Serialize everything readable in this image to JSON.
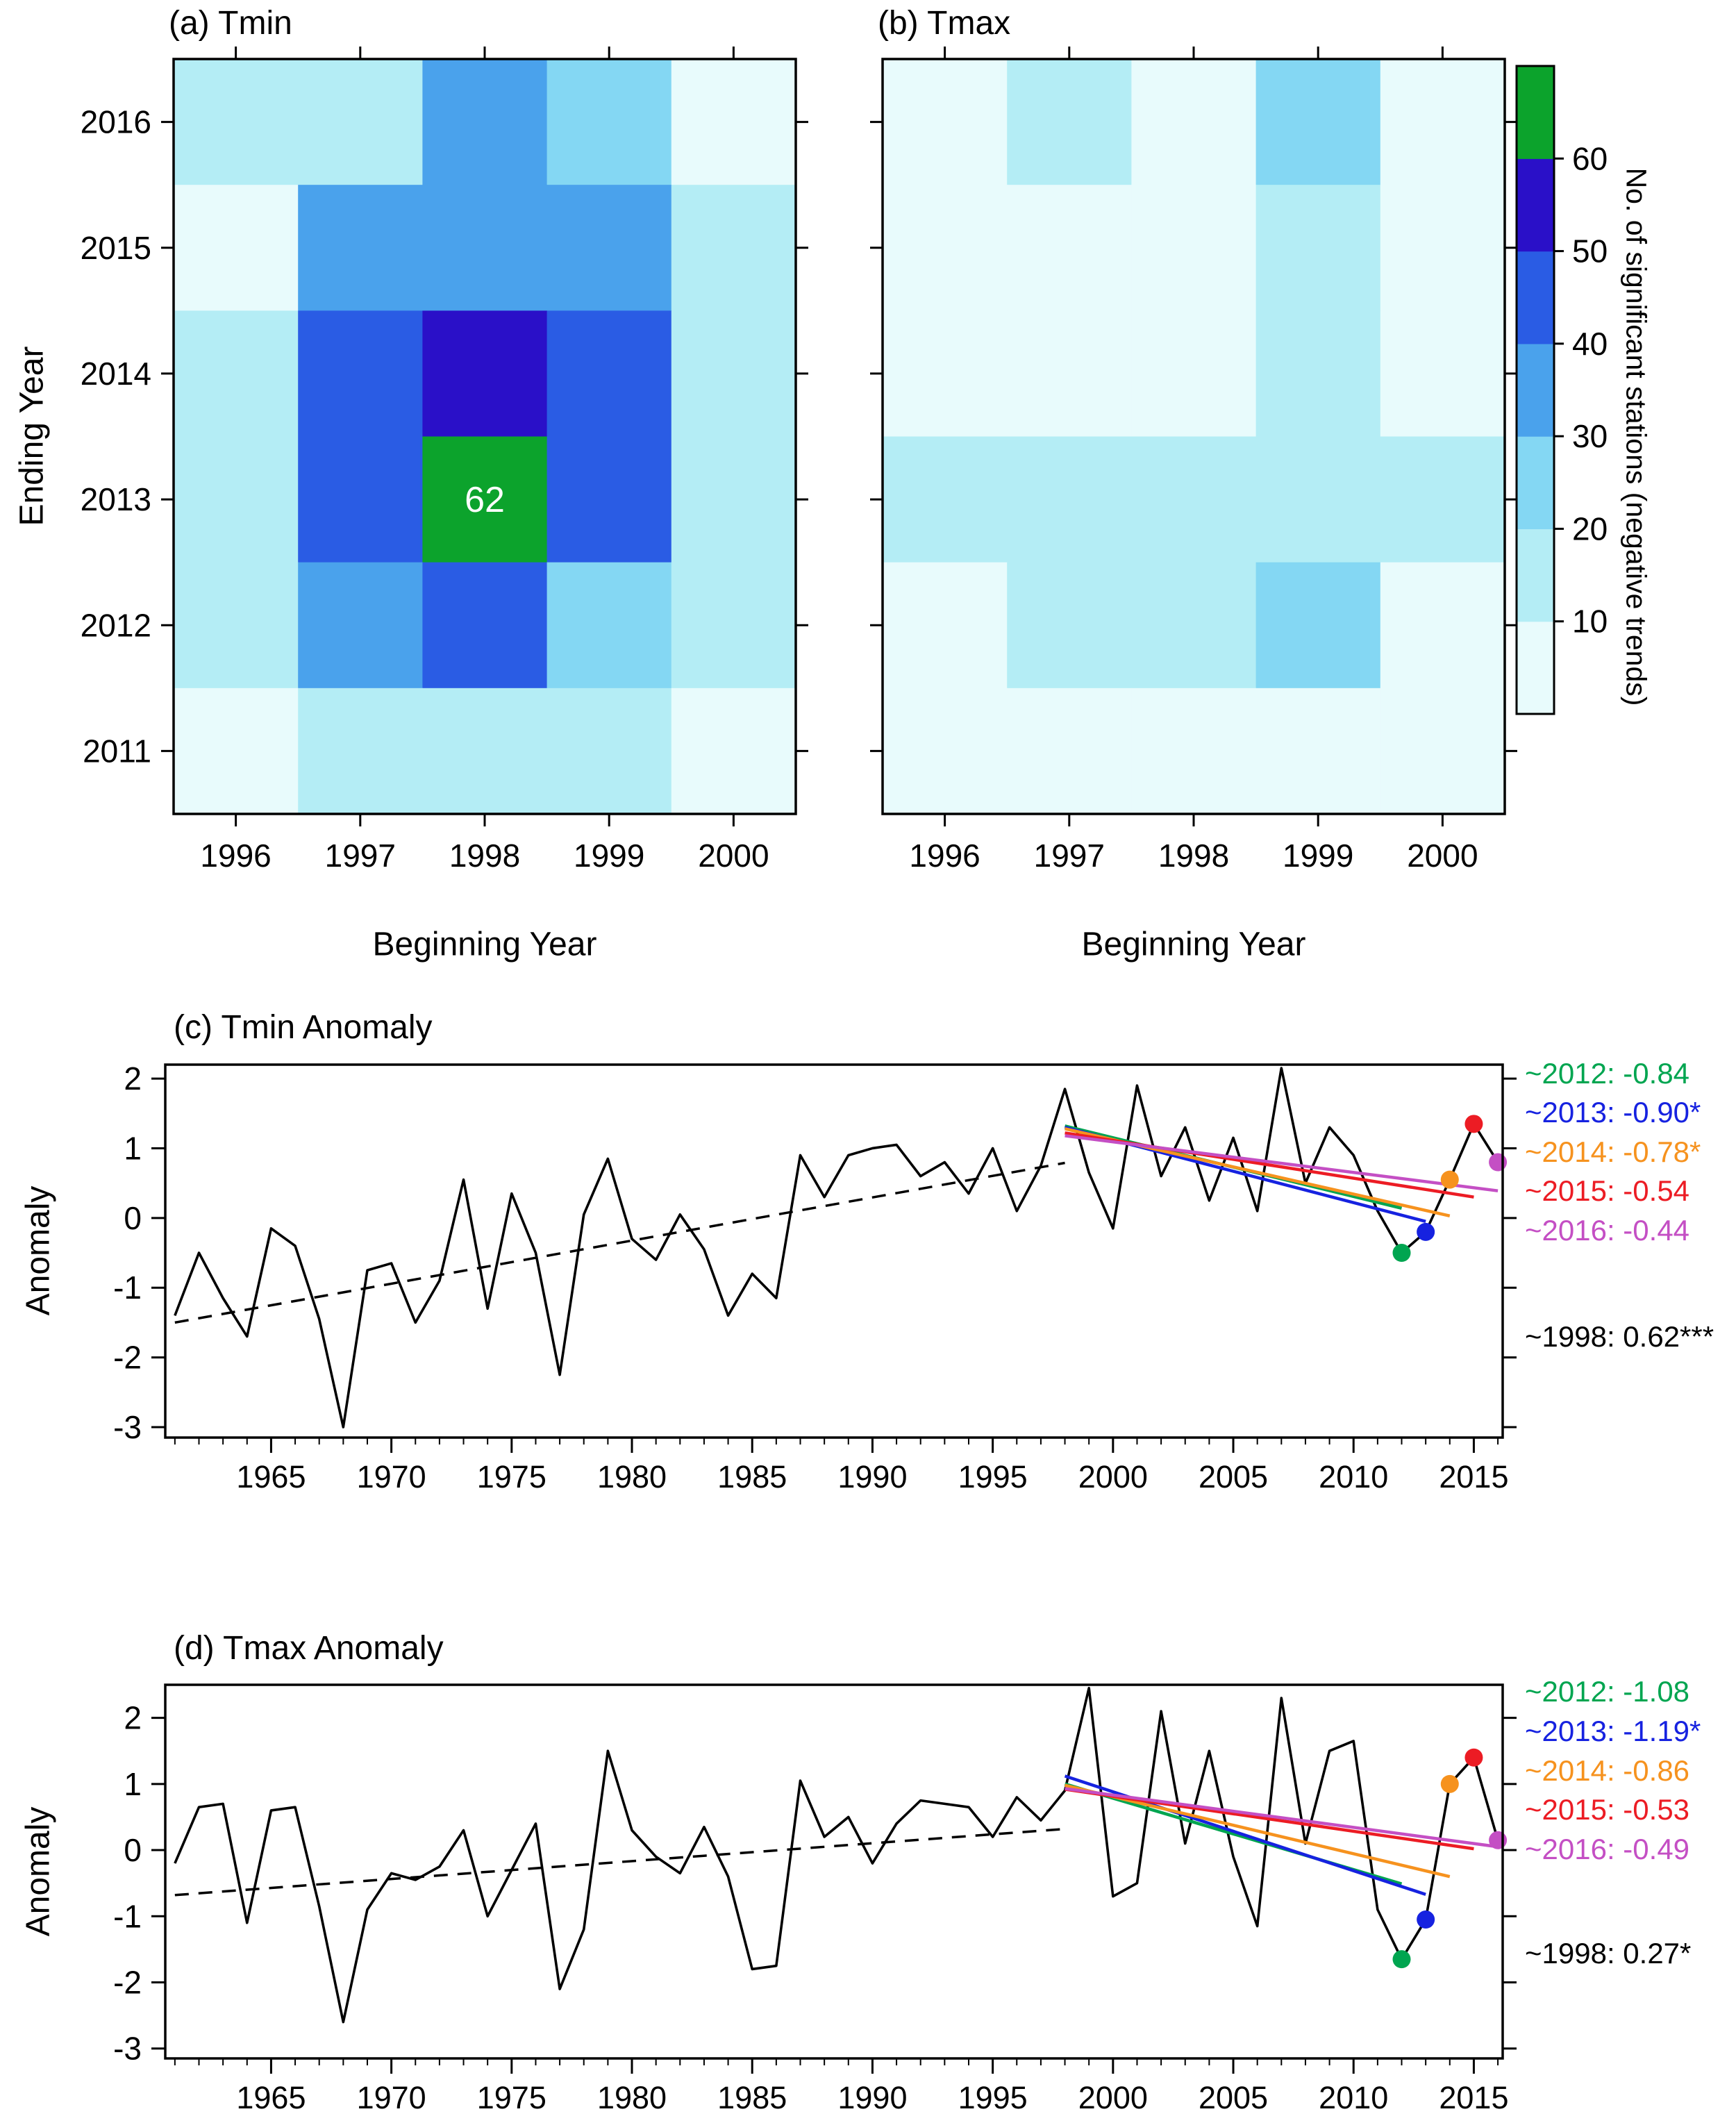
{
  "panels": {
    "a": {
      "title": "(a) Tmin",
      "xlabel": "Beginning Year",
      "ylabel": "Ending Year"
    },
    "b": {
      "title": "(b) Tmax",
      "xlabel": "Beginning Year"
    },
    "c": {
      "title": "(c) Tmin Anomaly",
      "ylabel": "Anomaly"
    },
    "d": {
      "title": "(d) Tmax Anomaly",
      "ylabel": "Anomaly"
    }
  },
  "colorbar": {
    "label": "No. of significant stations (negative trends)",
    "ticks": [
      10,
      20,
      30,
      40,
      50,
      60
    ],
    "thresholds": [
      10,
      20,
      30,
      40,
      50,
      60
    ],
    "colors": [
      "#e8fbfc",
      "#b4edf5",
      "#84d7f3",
      "#4aa2ec",
      "#2a5ce4",
      "#2a10c8",
      "#0ca32c"
    ]
  },
  "chart_data": [
    {
      "type": "heatmap",
      "panel": "a",
      "title": "(a) Tmin",
      "xlabel": "Beginning Year",
      "ylabel": "Ending Year",
      "x_categories": [
        "1996",
        "1997",
        "1998",
        "1999",
        "2000"
      ],
      "y_categories_top_to_bottom": [
        "2016",
        "2015",
        "2014",
        "2013",
        "2012",
        "2011"
      ],
      "values_rows_top_to_bottom": [
        [
          15,
          15,
          35,
          25,
          8
        ],
        [
          8,
          32,
          35,
          32,
          15
        ],
        [
          18,
          42,
          55,
          42,
          15
        ],
        [
          18,
          45,
          62,
          45,
          18
        ],
        [
          15,
          35,
          45,
          25,
          12
        ],
        [
          8,
          15,
          15,
          15,
          6
        ]
      ],
      "cell_labels": [
        {
          "row": 3,
          "col": 2,
          "text": "62"
        }
      ]
    },
    {
      "type": "heatmap",
      "panel": "b",
      "title": "(b) Tmax",
      "xlabel": "Beginning Year",
      "x_categories": [
        "1996",
        "1997",
        "1998",
        "1999",
        "2000"
      ],
      "y_categories_top_to_bottom": [
        "2016",
        "2015",
        "2014",
        "2013",
        "2012",
        "2011"
      ],
      "values_rows_top_to_bottom": [
        [
          6,
          14,
          7,
          22,
          6
        ],
        [
          6,
          7,
          7,
          14,
          6
        ],
        [
          6,
          7,
          7,
          14,
          6
        ],
        [
          13,
          16,
          16,
          13,
          13
        ],
        [
          6,
          13,
          13,
          22,
          6
        ],
        [
          5,
          6,
          6,
          6,
          5
        ]
      ],
      "cell_labels": []
    },
    {
      "type": "line",
      "panel": "c",
      "title": "(c) Tmin Anomaly",
      "ylabel": "Anomaly",
      "start_year": 1961,
      "values": [
        -1.4,
        -0.5,
        -1.15,
        -1.7,
        -0.15,
        -0.4,
        -1.45,
        -3.0,
        -0.75,
        -0.65,
        -1.5,
        -0.9,
        0.55,
        -1.3,
        0.35,
        -0.5,
        -2.25,
        0.05,
        0.85,
        -0.3,
        -0.6,
        0.05,
        -0.45,
        -1.4,
        -0.8,
        -1.15,
        0.9,
        0.3,
        0.9,
        1.0,
        1.05,
        0.6,
        0.8,
        0.35,
        1.0,
        0.1,
        0.75,
        1.85,
        0.65,
        -0.15,
        1.9,
        0.6,
        1.3,
        0.25,
        1.15,
        0.1,
        2.15,
        0.5,
        1.3,
        0.9,
        0.1,
        -0.5,
        -0.2,
        0.55,
        1.35,
        0.8
      ],
      "x_ticks": [
        1965,
        1970,
        1975,
        1980,
        1985,
        1990,
        1995,
        2000,
        2005,
        2010,
        2015
      ],
      "y_ticks": [
        2,
        1,
        0,
        -1,
        -2,
        -3
      ],
      "ylim": [
        -3.15,
        2.2
      ],
      "xlim": [
        1960.6,
        2016.2
      ],
      "dashed_trend": {
        "label": "~1998: 0.62***",
        "color": "#000000",
        "x": [
          1961,
          1998
        ],
        "y": [
          -1.5,
          0.79
        ]
      },
      "trend_lines": [
        {
          "end_year": 2012,
          "color": "#00a550",
          "x": [
            1998,
            2012
          ],
          "y": [
            1.32,
            0.14
          ],
          "value": -0.84
        },
        {
          "end_year": 2013,
          "color": "#1622e0",
          "x": [
            1998,
            2013
          ],
          "y": [
            1.3,
            -0.05
          ],
          "value": -0.9
        },
        {
          "end_year": 2014,
          "color": "#f6921e",
          "x": [
            1998,
            2014
          ],
          "y": [
            1.28,
            0.03
          ],
          "value": -0.78
        },
        {
          "end_year": 2015,
          "color": "#ec1c24",
          "x": [
            1998,
            2015
          ],
          "y": [
            1.22,
            0.3
          ],
          "value": -0.54
        },
        {
          "end_year": 2016,
          "color": "#c44fc4",
          "x": [
            1998,
            2016
          ],
          "y": [
            1.18,
            0.39
          ],
          "value": -0.44
        }
      ],
      "dots": [
        {
          "year": 2012,
          "value": -0.5,
          "color": "#00a550"
        },
        {
          "year": 2013,
          "value": -0.2,
          "color": "#1622e0"
        },
        {
          "year": 2014,
          "value": 0.55,
          "color": "#f6921e"
        },
        {
          "year": 2015,
          "value": 1.35,
          "color": "#ec1c24"
        },
        {
          "year": 2016,
          "value": 0.8,
          "color": "#c44fc4"
        }
      ],
      "annotations": [
        {
          "text": "~2012: -0.84",
          "color": "#00a550"
        },
        {
          "text": "~2013: -0.90*",
          "color": "#1622e0"
        },
        {
          "text": "~2014: -0.78*",
          "color": "#f6921e"
        },
        {
          "text": "~2015: -0.54",
          "color": "#ec1c24"
        },
        {
          "text": "~2016: -0.44",
          "color": "#c44fc4"
        },
        {
          "text": "~1998: 0.62***",
          "color": "#000000"
        }
      ]
    },
    {
      "type": "line",
      "panel": "d",
      "title": "(d) Tmax Anomaly",
      "ylabel": "Anomaly",
      "start_year": 1961,
      "values": [
        -0.2,
        0.65,
        0.7,
        -1.1,
        0.6,
        0.65,
        -0.85,
        -2.6,
        -0.9,
        -0.35,
        -0.45,
        -0.25,
        0.3,
        -1.0,
        -0.3,
        0.4,
        -2.1,
        -1.2,
        1.5,
        0.3,
        -0.1,
        -0.35,
        0.35,
        -0.4,
        -1.8,
        -1.75,
        1.05,
        0.2,
        0.5,
        -0.2,
        0.4,
        0.75,
        0.7,
        0.65,
        0.2,
        0.8,
        0.45,
        0.9,
        2.45,
        -0.7,
        -0.5,
        2.1,
        0.1,
        1.5,
        -0.1,
        -1.15,
        2.3,
        0.1,
        1.5,
        1.65,
        -0.9,
        -1.65,
        -1.05,
        1.0,
        1.4,
        0.15
      ],
      "x_ticks": [
        1965,
        1970,
        1975,
        1980,
        1985,
        1990,
        1995,
        2000,
        2005,
        2010,
        2015
      ],
      "y_ticks": [
        2,
        1,
        0,
        -1,
        -2,
        -3
      ],
      "ylim": [
        -3.15,
        2.5
      ],
      "xlim": [
        1960.6,
        2016.2
      ],
      "dashed_trend": {
        "label": "~1998: 0.27*",
        "color": "#000000",
        "x": [
          1961,
          1998
        ],
        "y": [
          -0.68,
          0.32
        ]
      },
      "trend_lines": [
        {
          "end_year": 2012,
          "color": "#00a550",
          "x": [
            1998,
            2012
          ],
          "y": [
            1.0,
            -0.51
          ],
          "value": -1.08
        },
        {
          "end_year": 2013,
          "color": "#1622e0",
          "x": [
            1998,
            2013
          ],
          "y": [
            1.12,
            -0.67
          ],
          "value": -1.19
        },
        {
          "end_year": 2014,
          "color": "#f6921e",
          "x": [
            1998,
            2014
          ],
          "y": [
            0.98,
            -0.4
          ],
          "value": -0.86
        },
        {
          "end_year": 2015,
          "color": "#ec1c24",
          "x": [
            1998,
            2015
          ],
          "y": [
            0.92,
            0.02
          ],
          "value": -0.53
        },
        {
          "end_year": 2016,
          "color": "#c44fc4",
          "x": [
            1998,
            2016
          ],
          "y": [
            0.93,
            0.05
          ],
          "value": -0.49
        }
      ],
      "dots": [
        {
          "year": 2012,
          "value": -1.65,
          "color": "#00a550"
        },
        {
          "year": 2013,
          "value": -1.05,
          "color": "#1622e0"
        },
        {
          "year": 2014,
          "value": 1.0,
          "color": "#f6921e"
        },
        {
          "year": 2015,
          "value": 1.4,
          "color": "#ec1c24"
        },
        {
          "year": 2016,
          "value": 0.15,
          "color": "#c44fc4"
        }
      ],
      "annotations": [
        {
          "text": "~2012: -1.08",
          "color": "#00a550"
        },
        {
          "text": "~2013: -1.19*",
          "color": "#1622e0"
        },
        {
          "text": "~2014: -0.86",
          "color": "#f6921e"
        },
        {
          "text": "~2015: -0.53",
          "color": "#ec1c24"
        },
        {
          "text": "~2016: -0.49",
          "color": "#c44fc4"
        },
        {
          "text": "~1998: 0.27*",
          "color": "#000000"
        }
      ]
    }
  ]
}
